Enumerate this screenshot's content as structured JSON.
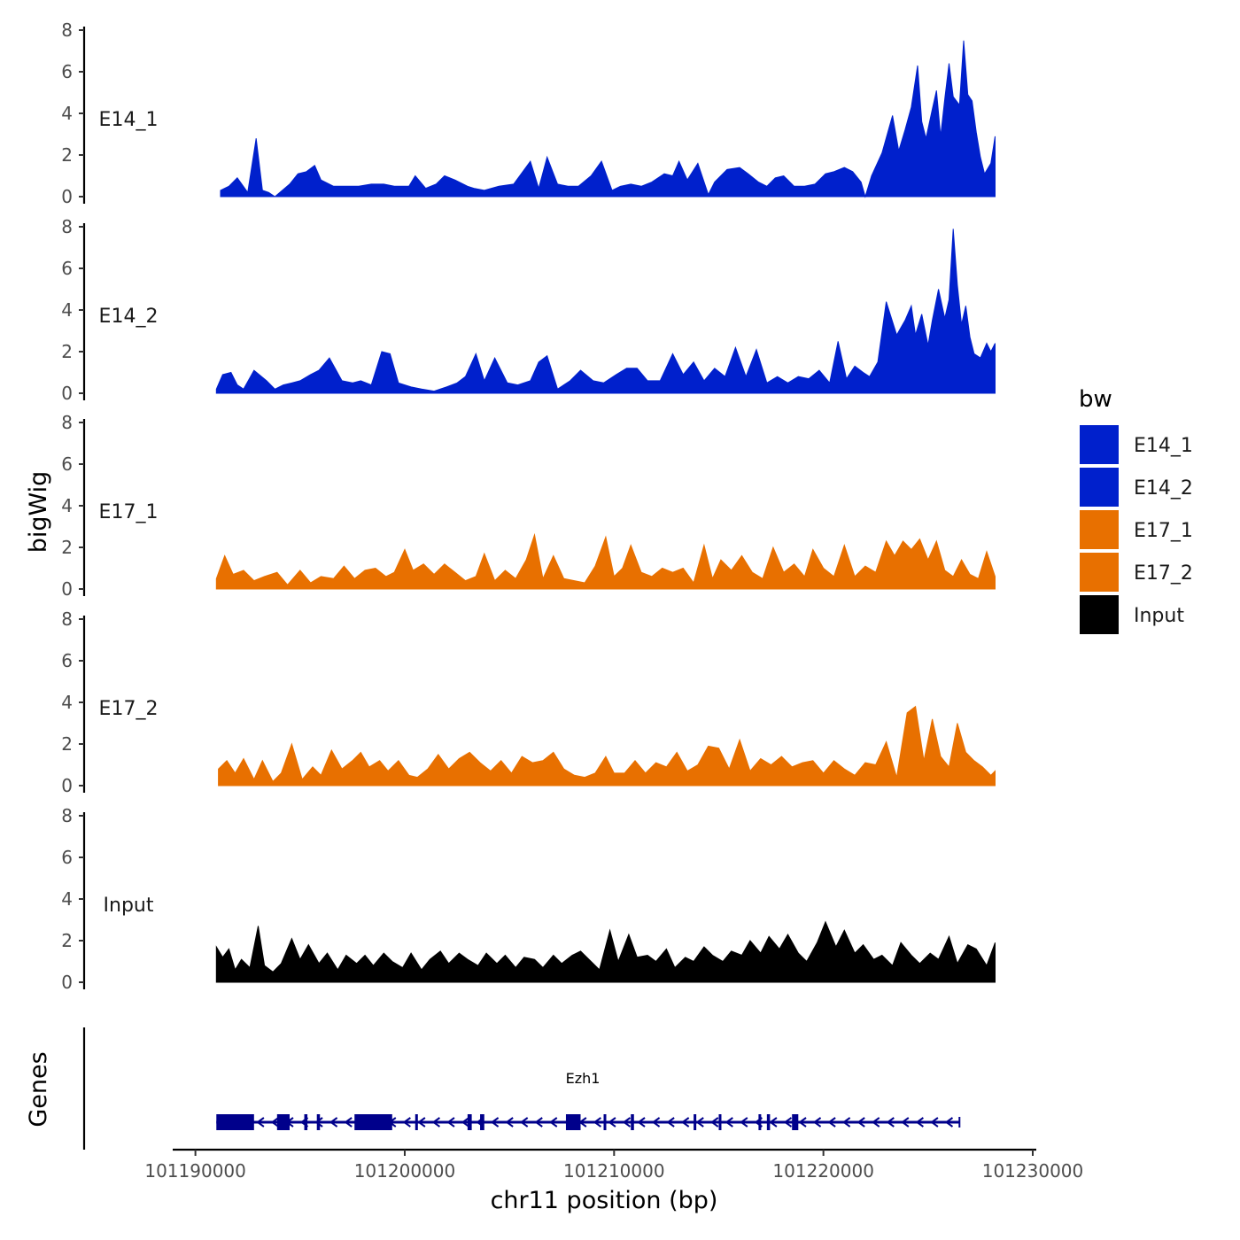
{
  "chart_data": {
    "type": "area",
    "chromosome": "chr11",
    "xlabel": "chr11 position (bp)",
    "ylabel": "bigWig",
    "genes_label": "Genes",
    "xlim": [
      101189000,
      101230000
    ],
    "x_ticks": [
      101190000,
      101200000,
      101210000,
      101220000,
      101230000
    ],
    "x_tick_labels": [
      "101190000",
      "101200000",
      "101210000",
      "101220000",
      "101230000"
    ],
    "ylim": [
      0,
      8
    ],
    "y_ticks": [
      0,
      2,
      4,
      6,
      8
    ],
    "y_tick_labels": [
      "0",
      "2",
      "4",
      "6",
      "8"
    ],
    "colors": {
      "E14_1": "#0020cc",
      "E14_2": "#0020cc",
      "E17_1": "#e87000",
      "E17_2": "#e87000",
      "Input": "#000000",
      "gene": "#00008b"
    },
    "legend": {
      "title": "bw",
      "position": "right",
      "entries": [
        {
          "name": "E14_1",
          "color": "#0020cc"
        },
        {
          "name": "E14_2",
          "color": "#0020cc"
        },
        {
          "name": "E17_1",
          "color": "#e87000"
        },
        {
          "name": "E17_2",
          "color": "#e87000"
        },
        {
          "name": "Input",
          "color": "#000000"
        }
      ]
    },
    "series": [
      {
        "name": "E14_1",
        "x": [
          101191200,
          101191600,
          101192000,
          101192500,
          101192900,
          101193200,
          101193500,
          101193800,
          101194500,
          101194900,
          101195300,
          101195700,
          101196000,
          101196600,
          101197200,
          101197800,
          101198400,
          101199000,
          101199500,
          101200200,
          101200500,
          101201000,
          101201500,
          101201900,
          101202400,
          101203000,
          101203300,
          101203800,
          101204500,
          101205200,
          101206000,
          101206400,
          101206800,
          101207300,
          101207800,
          101208300,
          101208900,
          101209400,
          101209900,
          101210300,
          101210800,
          101211300,
          101211800,
          101212400,
          101212800,
          101213100,
          101213500,
          101214000,
          101214500,
          101214800,
          101215400,
          101216000,
          101216400,
          101216900,
          101217300,
          101217700,
          101218100,
          101218600,
          101219100,
          101219600,
          101220100,
          101220500,
          101221000,
          101221400,
          101221800,
          101222000,
          101222300,
          101222800,
          101223300,
          101223600,
          101223900,
          101224200,
          101224500,
          101224700,
          101224900,
          101225200,
          101225400,
          101225600,
          101225800,
          101226000,
          101226200,
          101226500,
          101226700,
          101226900,
          101227100,
          101227300,
          101227500,
          101227700,
          101228000,
          101228200
        ],
        "values": [
          0.3,
          0.5,
          0.9,
          0.2,
          2.8,
          0.3,
          0.2,
          0.0,
          0.6,
          1.1,
          1.2,
          1.5,
          0.8,
          0.5,
          0.5,
          0.5,
          0.6,
          0.6,
          0.5,
          0.5,
          1.0,
          0.4,
          0.6,
          1.0,
          0.8,
          0.5,
          0.4,
          0.3,
          0.5,
          0.6,
          1.7,
          0.4,
          1.9,
          0.6,
          0.5,
          0.5,
          1.0,
          1.7,
          0.3,
          0.5,
          0.6,
          0.5,
          0.7,
          1.1,
          1.0,
          1.7,
          0.8,
          1.6,
          0.1,
          0.7,
          1.3,
          1.4,
          1.1,
          0.7,
          0.5,
          0.9,
          1.0,
          0.5,
          0.5,
          0.6,
          1.1,
          1.2,
          1.4,
          1.2,
          0.7,
          0.0,
          1.0,
          2.1,
          3.9,
          2.2,
          3.2,
          4.3,
          6.3,
          3.6,
          2.8,
          4.2,
          5.1,
          2.9,
          4.7,
          6.4,
          4.8,
          4.4,
          7.5,
          4.9,
          4.6,
          3.1,
          1.9,
          1.1,
          1.6,
          2.9
        ]
      },
      {
        "name": "E14_2",
        "x": [
          101191000,
          101191300,
          101191700,
          101192000,
          101192300,
          101192800,
          101193400,
          101193800,
          101194200,
          101194600,
          101195000,
          101195500,
          101195900,
          101196400,
          101197000,
          101197500,
          101197900,
          101198400,
          101198900,
          101199300,
          101199700,
          101200300,
          101200800,
          101201400,
          101202000,
          101202500,
          101202900,
          101203400,
          101203800,
          101204300,
          101204900,
          101205400,
          101206000,
          101206400,
          101206800,
          101207300,
          101207900,
          101208400,
          101209000,
          101209500,
          101210100,
          101210600,
          101211100,
          101211600,
          101212200,
          101212800,
          101213300,
          101213800,
          101214300,
          101214800,
          101215300,
          101215800,
          101216300,
          101216800,
          101217300,
          101217800,
          101218300,
          101218800,
          101219300,
          101219800,
          101220300,
          101220700,
          101221100,
          101221500,
          101221900,
          101222200,
          101222600,
          101223000,
          101223500,
          101223900,
          101224200,
          101224400,
          101224700,
          101225000,
          101225200,
          101225500,
          101225800,
          101226000,
          101226200,
          101226400,
          101226600,
          101226800,
          101227000,
          101227200,
          101227500,
          101227800,
          101228000,
          101228200
        ],
        "values": [
          0.2,
          0.9,
          1.0,
          0.4,
          0.2,
          1.1,
          0.6,
          0.2,
          0.4,
          0.5,
          0.6,
          0.9,
          1.1,
          1.7,
          0.6,
          0.5,
          0.6,
          0.4,
          2.0,
          1.9,
          0.5,
          0.3,
          0.2,
          0.1,
          0.3,
          0.5,
          0.8,
          1.9,
          0.6,
          1.7,
          0.5,
          0.4,
          0.6,
          1.5,
          1.8,
          0.2,
          0.6,
          1.1,
          0.6,
          0.5,
          0.9,
          1.2,
          1.2,
          0.6,
          0.6,
          1.9,
          0.9,
          1.5,
          0.6,
          1.2,
          0.8,
          2.2,
          0.8,
          2.1,
          0.5,
          0.8,
          0.5,
          0.8,
          0.7,
          1.1,
          0.5,
          2.5,
          0.7,
          1.3,
          1.0,
          0.8,
          1.5,
          4.4,
          2.8,
          3.5,
          4.2,
          2.8,
          3.8,
          2.3,
          3.5,
          5.0,
          3.6,
          4.5,
          7.9,
          5.2,
          3.3,
          4.2,
          2.7,
          1.9,
          1.7,
          2.4,
          2.0,
          2.4
        ]
      },
      {
        "name": "E17_1",
        "x": [
          101191000,
          101191400,
          101191800,
          101192300,
          101192800,
          101193300,
          101193900,
          101194400,
          101195000,
          101195500,
          101196000,
          101196600,
          101197100,
          101197600,
          101198100,
          101198600,
          101199100,
          101199500,
          101200000,
          101200400,
          101200900,
          101201400,
          101201900,
          101202400,
          101202900,
          101203400,
          101203800,
          101204300,
          101204800,
          101205300,
          101205800,
          101206200,
          101206600,
          101207100,
          101207600,
          101208100,
          101208600,
          101209100,
          101209600,
          101210000,
          101210400,
          101210800,
          101211300,
          101211800,
          101212300,
          101212800,
          101213300,
          101213800,
          101214300,
          101214700,
          101215100,
          101215600,
          101216100,
          101216600,
          101217100,
          101217600,
          101218100,
          101218600,
          101219100,
          101219500,
          101220000,
          101220500,
          101221000,
          101221500,
          101222000,
          101222500,
          101223000,
          101223400,
          101223800,
          101224200,
          101224600,
          101225000,
          101225400,
          101225800,
          101226200,
          101226600,
          101227000,
          101227400,
          101227800,
          101228200
        ],
        "values": [
          0.5,
          1.6,
          0.7,
          0.9,
          0.4,
          0.6,
          0.8,
          0.2,
          0.9,
          0.3,
          0.6,
          0.5,
          1.1,
          0.5,
          0.9,
          1.0,
          0.6,
          0.8,
          1.9,
          0.9,
          1.2,
          0.7,
          1.2,
          0.8,
          0.4,
          0.6,
          1.7,
          0.4,
          0.9,
          0.5,
          1.4,
          2.6,
          0.5,
          1.6,
          0.5,
          0.4,
          0.3,
          1.1,
          2.5,
          0.6,
          1.0,
          2.1,
          0.8,
          0.6,
          1.0,
          0.8,
          1.0,
          0.3,
          2.1,
          0.5,
          1.4,
          0.9,
          1.6,
          0.8,
          0.5,
          2.0,
          0.8,
          1.2,
          0.6,
          1.9,
          1.0,
          0.6,
          2.1,
          0.6,
          1.1,
          0.8,
          2.3,
          1.6,
          2.3,
          1.9,
          2.4,
          1.4,
          2.3,
          0.9,
          0.6,
          1.4,
          0.7,
          0.5,
          1.8,
          0.6
        ]
      },
      {
        "name": "E17_2",
        "x": [
          101191100,
          101191500,
          101191900,
          101192300,
          101192800,
          101193200,
          101193700,
          101194100,
          101194600,
          101195100,
          101195600,
          101196000,
          101196500,
          101197000,
          101197500,
          101197900,
          101198300,
          101198800,
          101199200,
          101199700,
          101200200,
          101200600,
          101201100,
          101201600,
          101202100,
          101202600,
          101203100,
          101203600,
          101204100,
          101204600,
          101205100,
          101205600,
          101206100,
          101206600,
          101207100,
          101207600,
          101208100,
          101208600,
          101209100,
          101209600,
          101210000,
          101210500,
          101211000,
          101211500,
          101212000,
          101212500,
          101213000,
          101213500,
          101214000,
          101214500,
          101215000,
          101215500,
          101216000,
          101216500,
          101217000,
          101217500,
          101218000,
          101218500,
          101219000,
          101219500,
          101220000,
          101220500,
          101221000,
          101221500,
          101222000,
          101222500,
          101223000,
          101223500,
          101224000,
          101224400,
          101224800,
          101225200,
          101225600,
          101226000,
          101226400,
          101226800,
          101227200,
          101227600,
          101228000,
          101228200
        ],
        "values": [
          0.8,
          1.2,
          0.6,
          1.3,
          0.3,
          1.2,
          0.2,
          0.6,
          2.0,
          0.3,
          0.9,
          0.5,
          1.7,
          0.8,
          1.2,
          1.6,
          0.9,
          1.2,
          0.7,
          1.2,
          0.5,
          0.4,
          0.8,
          1.5,
          0.8,
          1.3,
          1.6,
          1.1,
          0.7,
          1.2,
          0.6,
          1.4,
          1.1,
          1.2,
          1.6,
          0.8,
          0.5,
          0.4,
          0.6,
          1.4,
          0.6,
          0.6,
          1.2,
          0.6,
          1.1,
          0.9,
          1.6,
          0.7,
          1.0,
          1.9,
          1.8,
          0.8,
          2.2,
          0.7,
          1.3,
          1.0,
          1.4,
          0.9,
          1.1,
          1.2,
          0.6,
          1.2,
          0.8,
          0.5,
          1.1,
          1.0,
          2.1,
          0.4,
          3.5,
          3.8,
          1.2,
          3.2,
          1.4,
          0.9,
          3.0,
          1.6,
          1.2,
          0.9,
          0.5,
          0.7
        ]
      },
      {
        "name": "Input",
        "x": [
          101191000,
          101191300,
          101191600,
          101191900,
          101192200,
          101192600,
          101193000,
          101193300,
          101193700,
          101194100,
          101194600,
          101195000,
          101195400,
          101195900,
          101196300,
          101196800,
          101197200,
          101197700,
          101198100,
          101198500,
          101199000,
          101199400,
          101199900,
          101200300,
          101200800,
          101201200,
          101201700,
          101202100,
          101202600,
          101203000,
          101203500,
          101203900,
          101204400,
          101204800,
          101205300,
          101205700,
          101206200,
          101206600,
          101207100,
          101207500,
          101208000,
          101208400,
          101208900,
          101209300,
          101209800,
          101210200,
          101210700,
          101211100,
          101211600,
          101212000,
          101212500,
          101212900,
          101213400,
          101213800,
          101214300,
          101214700,
          101215200,
          101215600,
          101216100,
          101216500,
          101217000,
          101217400,
          101217900,
          101218300,
          101218800,
          101219200,
          101219700,
          101220100,
          101220600,
          101221000,
          101221500,
          101221900,
          101222400,
          101222800,
          101223300,
          101223700,
          101224200,
          101224600,
          101225100,
          101225500,
          101226000,
          101226400,
          101226900,
          101227300,
          101227800,
          101228200
        ],
        "values": [
          1.7,
          1.2,
          1.6,
          0.6,
          1.1,
          0.7,
          2.7,
          0.8,
          0.5,
          0.9,
          2.1,
          1.1,
          1.8,
          0.9,
          1.4,
          0.6,
          1.3,
          0.9,
          1.3,
          0.8,
          1.4,
          1.0,
          0.7,
          1.4,
          0.6,
          1.1,
          1.5,
          0.9,
          1.4,
          1.1,
          0.8,
          1.4,
          0.9,
          1.3,
          0.7,
          1.2,
          1.1,
          0.7,
          1.3,
          0.9,
          1.3,
          1.5,
          1.0,
          0.6,
          2.5,
          1.0,
          2.3,
          1.2,
          1.3,
          1.0,
          1.6,
          0.7,
          1.2,
          1.0,
          1.7,
          1.3,
          1.0,
          1.5,
          1.3,
          2.0,
          1.4,
          2.2,
          1.6,
          2.3,
          1.4,
          1.0,
          1.9,
          2.9,
          1.7,
          2.5,
          1.4,
          1.8,
          1.1,
          1.3,
          0.8,
          1.9,
          1.3,
          0.9,
          1.4,
          1.1,
          2.2,
          0.9,
          1.8,
          1.6,
          0.8,
          1.9
        ]
      }
    ],
    "gene": {
      "name": "Ezh1",
      "strand": "-",
      "start": 101191000,
      "end": 101226500,
      "exons": [
        [
          101191000,
          101192800
        ],
        [
          101193900,
          101194500
        ],
        [
          101195200,
          101195350
        ],
        [
          101195800,
          101195950
        ],
        [
          101197600,
          101199400
        ],
        [
          101200500,
          101200600
        ],
        [
          101203000,
          101203200
        ],
        [
          101203600,
          101203800
        ],
        [
          101207700,
          101208400
        ],
        [
          101209500,
          101209600
        ],
        [
          101210800,
          101210950
        ],
        [
          101213800,
          101213900
        ],
        [
          101215000,
          101215100
        ],
        [
          101216900,
          101217000
        ],
        [
          101217300,
          101217450
        ],
        [
          101218500,
          101218800
        ]
      ]
    }
  }
}
